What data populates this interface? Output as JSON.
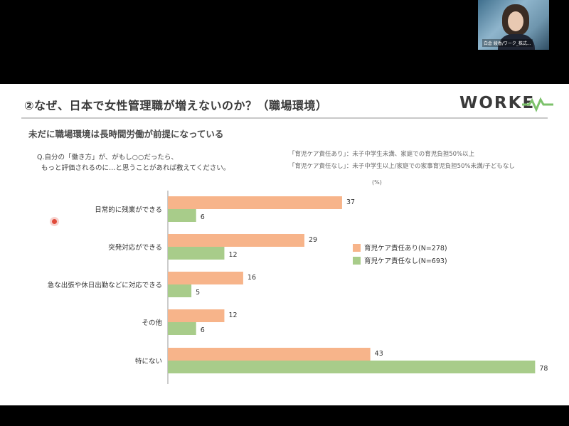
{
  "slide": {
    "title": "②なぜ、日本で女性管理職が増えないのか？（職場環境）",
    "logo": "WORKE",
    "subtitle": "未だに職場環境は長時間労働が前提になっている",
    "question_line1": "Q.自分の「働き方」が、がもし○○だったら、",
    "question_line2": "もっと評価されるのに…と思うことがあれば教えてください。",
    "definition_1": "「育児ケア責任あり」：未子中学生未満、家庭での育児負担50%以上",
    "definition_2": "「育児ケア責任なし」：未子中学生以上/家庭での家事育児負担50%未満/子どもなし"
  },
  "webcam": {
    "name_caption": "白倉 綾香/ワーク_株式..."
  },
  "colors": {
    "orange": "#F7B48A",
    "green": "#A8CC8A",
    "axis": "#9a9a9a"
  },
  "chart_data": {
    "type": "bar",
    "orientation": "horizontal",
    "unit_label": "(%)",
    "categories": [
      "日常的に残業ができる",
      "突発対応ができる",
      "急な出張や休日出勤などに対応できる",
      "その他",
      "特にない"
    ],
    "series": [
      {
        "name": "育児ケア責任あり(N=278)",
        "color": "#F7B48A",
        "values": [
          37,
          29,
          16,
          12,
          43
        ]
      },
      {
        "name": "育児ケア責任なし(N=693)",
        "color": "#A8CC8A",
        "values": [
          6,
          12,
          5,
          6,
          78
        ]
      }
    ],
    "xlim": [
      0,
      80
    ],
    "legend": "right",
    "grid": false
  }
}
